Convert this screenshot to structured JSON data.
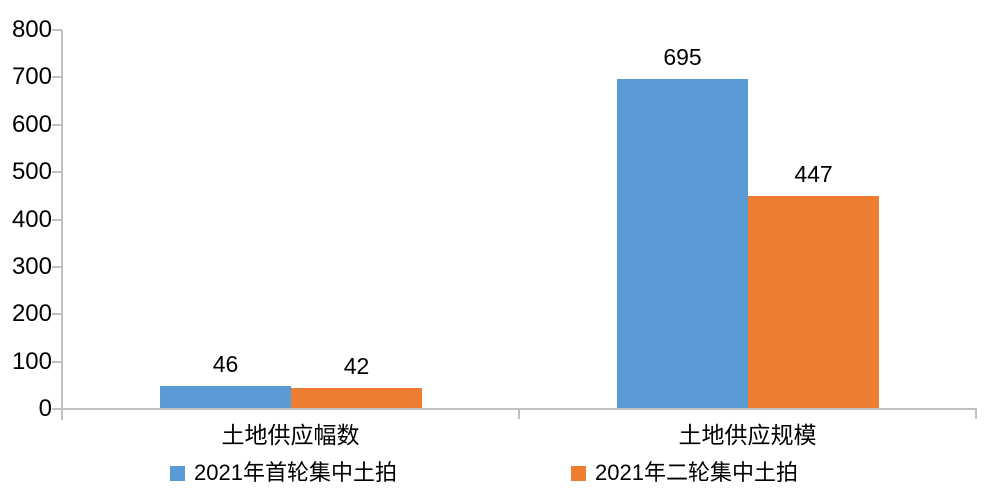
{
  "chart_data": {
    "type": "bar",
    "title": "",
    "xlabel": "",
    "ylabel": "",
    "categories": [
      "土地供应幅数",
      "土地供应规模"
    ],
    "series": [
      {
        "name": "2021年首轮集中土拍",
        "color": "#5B9BD5",
        "values": [
          46,
          695
        ]
      },
      {
        "name": "2021年二轮集中土拍",
        "color": "#ED7D31",
        "values": [
          42,
          447
        ]
      }
    ],
    "ylim": [
      0,
      800
    ],
    "ytick_step": 100,
    "ytick_labels": [
      "0",
      "100",
      "200",
      "300",
      "400",
      "500",
      "600",
      "700",
      "800"
    ],
    "value_labels": [
      [
        "46",
        "695"
      ],
      [
        "42",
        "447"
      ]
    ],
    "grid": false,
    "legend_position": "bottom",
    "axis_color": "#C0C0C0",
    "text_color": "#000000",
    "background_color": "#FFFFFF"
  }
}
